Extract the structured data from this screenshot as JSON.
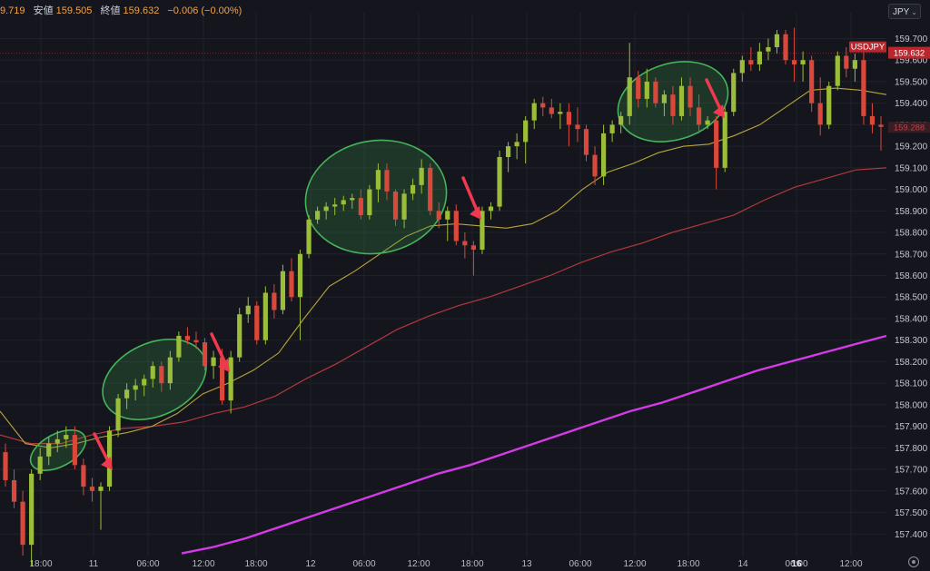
{
  "header": {
    "open_partial": "9.719",
    "low_label": "安値",
    "low_value": "159.505",
    "close_label": "終値",
    "close_value": "159.632",
    "change": "−0.006 (−0.00%)"
  },
  "currency_select": {
    "value": "JPY"
  },
  "settings_icon": "gear-icon",
  "colors": {
    "background": "#15161d",
    "bull_candle": "#9bbd39",
    "bear_candle": "#d9483b",
    "ma_fast": "#b8a43a",
    "ma_mid": "#b2383d",
    "ma_slow": "#d33ae8",
    "ellipse_stroke": "#44b45a",
    "arrow": "#f0384f",
    "price_tag": "#b8262e"
  },
  "chart_data": {
    "type": "candlestick",
    "symbol_label": "USDJPY",
    "last_price": "159.632",
    "ref_price": "159.288",
    "ylim": [
      157.3,
      159.82
    ],
    "y_ticks": [
      "159.700",
      "159.600",
      "159.500",
      "159.400",
      "159.300",
      "159.200",
      "159.100",
      "159.000",
      "158.900",
      "158.800",
      "158.700",
      "158.600",
      "158.500",
      "158.400",
      "158.300",
      "158.200",
      "158.100",
      "158.000",
      "157.900",
      "157.800",
      "157.700",
      "157.600",
      "157.500",
      "157.400"
    ],
    "x_ticks": [
      "18:00",
      "11",
      "06:00",
      "12:00",
      "18:00",
      "12",
      "06:00",
      "12:00",
      "18:00",
      "13",
      "06:00",
      "12:00",
      "18:00",
      "14",
      "06:00",
      "16",
      "12:00"
    ],
    "candles": [
      {
        "o": 157.78,
        "h": 157.82,
        "l": 157.62,
        "c": 157.65
      },
      {
        "o": 157.65,
        "h": 157.7,
        "l": 157.52,
        "c": 157.55
      },
      {
        "o": 157.55,
        "h": 157.6,
        "l": 157.3,
        "c": 157.35
      },
      {
        "o": 157.35,
        "h": 157.7,
        "l": 157.25,
        "c": 157.68
      },
      {
        "o": 157.68,
        "h": 157.8,
        "l": 157.65,
        "c": 157.76
      },
      {
        "o": 157.76,
        "h": 157.85,
        "l": 157.72,
        "c": 157.82
      },
      {
        "o": 157.82,
        "h": 157.88,
        "l": 157.78,
        "c": 157.84
      },
      {
        "o": 157.84,
        "h": 157.9,
        "l": 157.8,
        "c": 157.86
      },
      {
        "o": 157.86,
        "h": 157.9,
        "l": 157.7,
        "c": 157.72
      },
      {
        "o": 157.72,
        "h": 157.75,
        "l": 157.58,
        "c": 157.62
      },
      {
        "o": 157.62,
        "h": 157.66,
        "l": 157.55,
        "c": 157.6
      },
      {
        "o": 157.6,
        "h": 157.64,
        "l": 157.42,
        "c": 157.62
      },
      {
        "o": 157.62,
        "h": 157.9,
        "l": 157.6,
        "c": 157.88
      },
      {
        "o": 157.88,
        "h": 158.05,
        "l": 157.85,
        "c": 158.03
      },
      {
        "o": 158.03,
        "h": 158.1,
        "l": 157.98,
        "c": 158.07
      },
      {
        "o": 158.07,
        "h": 158.12,
        "l": 158.02,
        "c": 158.09
      },
      {
        "o": 158.09,
        "h": 158.14,
        "l": 158.04,
        "c": 158.12
      },
      {
        "o": 158.12,
        "h": 158.2,
        "l": 158.08,
        "c": 158.18
      },
      {
        "o": 158.18,
        "h": 158.2,
        "l": 158.06,
        "c": 158.1
      },
      {
        "o": 158.1,
        "h": 158.25,
        "l": 158.07,
        "c": 158.22
      },
      {
        "o": 158.22,
        "h": 158.34,
        "l": 158.2,
        "c": 158.32
      },
      {
        "o": 158.32,
        "h": 158.36,
        "l": 158.28,
        "c": 158.3
      },
      {
        "o": 158.3,
        "h": 158.34,
        "l": 158.26,
        "c": 158.29
      },
      {
        "o": 158.29,
        "h": 158.31,
        "l": 158.16,
        "c": 158.18
      },
      {
        "o": 158.18,
        "h": 158.25,
        "l": 158.12,
        "c": 158.22
      },
      {
        "o": 158.22,
        "h": 158.26,
        "l": 158.0,
        "c": 158.02
      },
      {
        "o": 158.02,
        "h": 158.25,
        "l": 157.96,
        "c": 158.22
      },
      {
        "o": 158.22,
        "h": 158.45,
        "l": 158.2,
        "c": 158.42
      },
      {
        "o": 158.42,
        "h": 158.5,
        "l": 158.38,
        "c": 158.46
      },
      {
        "o": 158.46,
        "h": 158.48,
        "l": 158.28,
        "c": 158.3
      },
      {
        "o": 158.3,
        "h": 158.55,
        "l": 158.28,
        "c": 158.52
      },
      {
        "o": 158.52,
        "h": 158.56,
        "l": 158.4,
        "c": 158.44
      },
      {
        "o": 158.44,
        "h": 158.65,
        "l": 158.42,
        "c": 158.62
      },
      {
        "o": 158.62,
        "h": 158.68,
        "l": 158.48,
        "c": 158.5
      },
      {
        "o": 158.5,
        "h": 158.72,
        "l": 158.3,
        "c": 158.7
      },
      {
        "o": 158.7,
        "h": 158.88,
        "l": 158.68,
        "c": 158.86
      },
      {
        "o": 158.86,
        "h": 158.92,
        "l": 158.84,
        "c": 158.9
      },
      {
        "o": 158.9,
        "h": 158.94,
        "l": 158.86,
        "c": 158.92
      },
      {
        "o": 158.92,
        "h": 158.96,
        "l": 158.88,
        "c": 158.93
      },
      {
        "o": 158.93,
        "h": 158.97,
        "l": 158.9,
        "c": 158.95
      },
      {
        "o": 158.95,
        "h": 158.98,
        "l": 158.91,
        "c": 158.96
      },
      {
        "o": 158.96,
        "h": 159.0,
        "l": 158.86,
        "c": 158.88
      },
      {
        "o": 158.88,
        "h": 159.02,
        "l": 158.86,
        "c": 159.0
      },
      {
        "o": 159.0,
        "h": 159.12,
        "l": 158.94,
        "c": 159.09
      },
      {
        "o": 159.09,
        "h": 159.12,
        "l": 158.95,
        "c": 158.99
      },
      {
        "o": 158.99,
        "h": 159.0,
        "l": 158.83,
        "c": 158.86
      },
      {
        "o": 158.86,
        "h": 159.0,
        "l": 158.82,
        "c": 158.98
      },
      {
        "o": 158.98,
        "h": 159.05,
        "l": 158.95,
        "c": 159.02
      },
      {
        "o": 159.02,
        "h": 159.14,
        "l": 158.98,
        "c": 159.1
      },
      {
        "o": 159.1,
        "h": 159.12,
        "l": 158.88,
        "c": 158.9
      },
      {
        "o": 158.9,
        "h": 158.94,
        "l": 158.82,
        "c": 158.86
      },
      {
        "o": 158.86,
        "h": 158.92,
        "l": 158.76,
        "c": 158.9
      },
      {
        "o": 158.9,
        "h": 158.93,
        "l": 158.74,
        "c": 158.76
      },
      {
        "o": 158.76,
        "h": 158.8,
        "l": 158.68,
        "c": 158.74
      },
      {
        "o": 158.74,
        "h": 158.76,
        "l": 158.6,
        "c": 158.72
      },
      {
        "o": 158.72,
        "h": 158.92,
        "l": 158.7,
        "c": 158.9
      },
      {
        "o": 158.9,
        "h": 158.94,
        "l": 158.86,
        "c": 158.92
      },
      {
        "o": 158.92,
        "h": 159.18,
        "l": 158.9,
        "c": 159.15
      },
      {
        "o": 159.15,
        "h": 159.22,
        "l": 159.08,
        "c": 159.2
      },
      {
        "o": 159.2,
        "h": 159.26,
        "l": 159.14,
        "c": 159.22
      },
      {
        "o": 159.22,
        "h": 159.34,
        "l": 159.12,
        "c": 159.32
      },
      {
        "o": 159.32,
        "h": 159.42,
        "l": 159.28,
        "c": 159.4
      },
      {
        "o": 159.4,
        "h": 159.43,
        "l": 159.34,
        "c": 159.38
      },
      {
        "o": 159.38,
        "h": 159.42,
        "l": 159.33,
        "c": 159.35
      },
      {
        "o": 159.35,
        "h": 159.4,
        "l": 159.28,
        "c": 159.36
      },
      {
        "o": 159.36,
        "h": 159.4,
        "l": 159.2,
        "c": 159.3
      },
      {
        "o": 159.3,
        "h": 159.38,
        "l": 159.22,
        "c": 159.28
      },
      {
        "o": 159.28,
        "h": 159.3,
        "l": 159.13,
        "c": 159.16
      },
      {
        "o": 159.16,
        "h": 159.2,
        "l": 159.02,
        "c": 159.06
      },
      {
        "o": 159.06,
        "h": 159.3,
        "l": 159.02,
        "c": 159.26
      },
      {
        "o": 159.26,
        "h": 159.32,
        "l": 159.22,
        "c": 159.3
      },
      {
        "o": 159.3,
        "h": 159.36,
        "l": 159.26,
        "c": 159.34
      },
      {
        "o": 159.34,
        "h": 159.68,
        "l": 159.3,
        "c": 159.52
      },
      {
        "o": 159.52,
        "h": 159.55,
        "l": 159.38,
        "c": 159.42
      },
      {
        "o": 159.42,
        "h": 159.56,
        "l": 159.38,
        "c": 159.5
      },
      {
        "o": 159.5,
        "h": 159.52,
        "l": 159.38,
        "c": 159.4
      },
      {
        "o": 159.4,
        "h": 159.46,
        "l": 159.34,
        "c": 159.44
      },
      {
        "o": 159.44,
        "h": 159.48,
        "l": 159.3,
        "c": 159.34
      },
      {
        "o": 159.34,
        "h": 159.52,
        "l": 159.32,
        "c": 159.48
      },
      {
        "o": 159.48,
        "h": 159.52,
        "l": 159.34,
        "c": 159.38
      },
      {
        "o": 159.38,
        "h": 159.44,
        "l": 159.26,
        "c": 159.3
      },
      {
        "o": 159.3,
        "h": 159.34,
        "l": 159.28,
        "c": 159.32
      },
      {
        "o": 159.32,
        "h": 159.34,
        "l": 159.0,
        "c": 159.1
      },
      {
        "o": 159.1,
        "h": 159.38,
        "l": 159.08,
        "c": 159.36
      },
      {
        "o": 159.36,
        "h": 159.56,
        "l": 159.34,
        "c": 159.54
      },
      {
        "o": 159.54,
        "h": 159.62,
        "l": 159.5,
        "c": 159.6
      },
      {
        "o": 159.6,
        "h": 159.66,
        "l": 159.55,
        "c": 159.58
      },
      {
        "o": 159.58,
        "h": 159.68,
        "l": 159.55,
        "c": 159.64
      },
      {
        "o": 159.64,
        "h": 159.7,
        "l": 159.6,
        "c": 159.66
      },
      {
        "o": 159.66,
        "h": 159.74,
        "l": 159.63,
        "c": 159.72
      },
      {
        "o": 159.72,
        "h": 159.74,
        "l": 159.58,
        "c": 159.6
      },
      {
        "o": 159.6,
        "h": 159.75,
        "l": 159.5,
        "c": 159.58
      },
      {
        "o": 159.58,
        "h": 159.64,
        "l": 159.5,
        "c": 159.6
      },
      {
        "o": 159.6,
        "h": 159.62,
        "l": 159.36,
        "c": 159.4
      },
      {
        "o": 159.4,
        "h": 159.52,
        "l": 159.25,
        "c": 159.3
      },
      {
        "o": 159.3,
        "h": 159.5,
        "l": 159.28,
        "c": 159.48
      },
      {
        "o": 159.48,
        "h": 159.64,
        "l": 159.46,
        "c": 159.62
      },
      {
        "o": 159.62,
        "h": 159.66,
        "l": 159.52,
        "c": 159.56
      },
      {
        "o": 159.56,
        "h": 159.63,
        "l": 159.5,
        "c": 159.6
      },
      {
        "o": 159.6,
        "h": 159.64,
        "l": 159.3,
        "c": 159.34
      },
      {
        "o": 159.34,
        "h": 159.4,
        "l": 159.26,
        "c": 159.3
      },
      {
        "o": 159.3,
        "h": 159.34,
        "l": 159.18,
        "c": 159.29
      }
    ],
    "ma_fast": [
      157.97,
      157.82,
      157.8,
      157.82,
      157.85,
      157.87,
      157.9,
      157.96,
      158.05,
      158.1,
      158.16,
      158.24,
      158.4,
      158.55,
      158.62,
      158.7,
      158.78,
      158.83,
      158.84,
      158.83,
      158.82,
      158.84,
      158.9,
      159.0,
      159.08,
      159.12,
      159.17,
      159.2,
      159.21,
      159.25,
      159.3,
      159.38,
      159.46,
      159.47,
      159.46,
      159.44
    ],
    "ma_mid": [
      157.86,
      157.82,
      157.82,
      157.86,
      157.89,
      157.9,
      157.92,
      157.96,
      157.99,
      158.04,
      158.12,
      158.19,
      158.27,
      158.35,
      158.41,
      158.46,
      158.5,
      158.55,
      158.6,
      158.66,
      158.71,
      158.75,
      158.8,
      158.84,
      158.88,
      158.95,
      159.01,
      159.05,
      159.09,
      159.1
    ],
    "ma_slow": [
      157.31,
      157.34,
      157.38,
      157.43,
      157.48,
      157.53,
      157.58,
      157.63,
      157.68,
      157.72,
      157.77,
      157.82,
      157.87,
      157.92,
      157.97,
      158.01,
      158.06,
      158.11,
      158.16,
      158.2,
      158.24,
      158.28,
      158.32
    ],
    "highlight_ellipses": 4,
    "signal_arrows": 5
  }
}
